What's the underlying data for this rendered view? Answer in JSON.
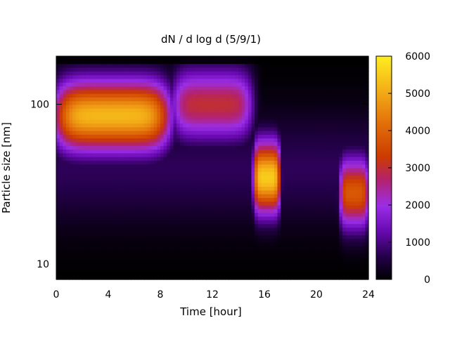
{
  "chart_data": {
    "type": "heatmap",
    "title": "dN / d log d (5/9/1)",
    "xlabel": "Time [hour]",
    "ylabel": "Particle size [nm]",
    "xlim": [
      0,
      24
    ],
    "ylim_nm": [
      8,
      200
    ],
    "yscale": "log",
    "x_ticks": [
      "0",
      "4",
      "8",
      "12",
      "16",
      "20",
      "24"
    ],
    "x_tick_values": [
      0,
      4,
      8,
      12,
      16,
      20,
      24
    ],
    "y_ticks": [
      "10",
      "100"
    ],
    "y_tick_values": [
      10,
      100
    ],
    "colorbar": {
      "min": 0,
      "max": 6000,
      "ticks": [
        "0",
        "1000",
        "2000",
        "3000",
        "4000",
        "5000",
        "6000"
      ],
      "tick_values": [
        0,
        1000,
        2000,
        3000,
        4000,
        5000,
        6000
      ],
      "colormap": "black-purple-red-orange-yellow"
    },
    "features": [
      {
        "t_start": 0,
        "t_end": 8.6,
        "peak_d_nm": 85,
        "peak_value": 5200
      },
      {
        "t_start": 9,
        "t_end": 15,
        "peak_d_nm": 100,
        "peak_value": 3000
      },
      {
        "t_start": 15.2,
        "t_end": 17.2,
        "peak_d_nm": 35,
        "peak_value": 5500
      },
      {
        "t_start": 21.8,
        "t_end": 24,
        "peak_d_nm": 28,
        "peak_value": 3800
      }
    ]
  }
}
